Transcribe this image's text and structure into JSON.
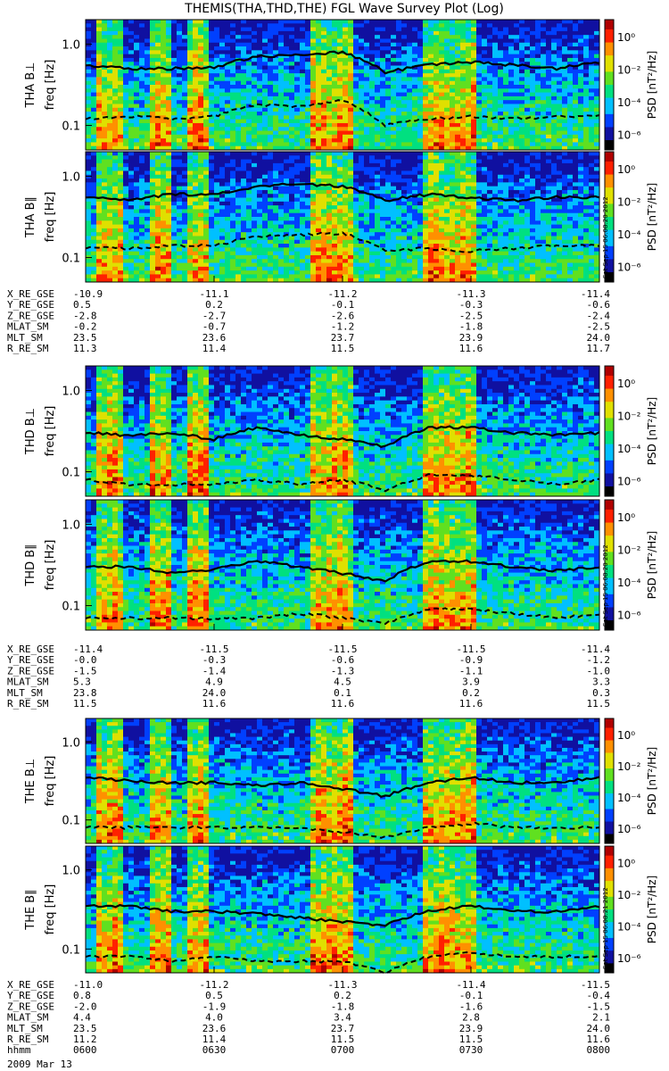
{
  "title": "THEMIS(THA,THD,THE) FGL Wave Survey Plot (Log)",
  "chart_data": {
    "type": "heatmap",
    "ylabel": "freq [Hz]",
    "yscale": "log",
    "ylim": [
      0.05,
      2.0
    ],
    "yticks": [
      "0.1",
      "1.0"
    ],
    "colorbar": {
      "label": "PSD [nT²/Hz]",
      "scale": "log",
      "tick_labels": [
        "10⁰",
        "10⁻²",
        "10⁻⁴",
        "10⁻⁶"
      ],
      "colors": [
        "#000000",
        "#1010a0",
        "#0040ff",
        "#00c0ff",
        "#00e080",
        "#60e020",
        "#e0e000",
        "#ff9000",
        "#ff2000",
        "#b00000"
      ]
    },
    "stamps": [
      "Sat Sep 15 06:08:20 2012",
      "Sat Sep 15 06:08:20 2012",
      "Sat Sep 15 06:08:21 2012"
    ],
    "panels": [
      {
        "label": "THA B⊥",
        "solid_y": [
          0.55,
          0.5,
          0.5,
          0.52,
          0.7,
          0.75,
          0.8,
          0.45,
          0.55,
          0.6,
          0.55,
          0.5,
          0.6
        ],
        "dashed_y": [
          0.12,
          0.13,
          0.12,
          0.13,
          0.18,
          0.17,
          0.2,
          0.1,
          0.12,
          0.13,
          0.12,
          0.13,
          0.13
        ]
      },
      {
        "label": "THA B∥",
        "solid_y": [
          0.55,
          0.5,
          0.6,
          0.6,
          0.75,
          0.8,
          0.75,
          0.5,
          0.6,
          0.55,
          0.5,
          0.55,
          0.55
        ],
        "dashed_y": [
          0.13,
          0.13,
          0.14,
          0.14,
          0.18,
          0.19,
          0.2,
          0.12,
          0.13,
          0.12,
          0.13,
          0.14,
          0.14
        ]
      },
      {
        "label": "THD B⊥",
        "solid_y": [
          0.3,
          0.28,
          0.3,
          0.25,
          0.35,
          0.28,
          0.25,
          0.2,
          0.35,
          0.35,
          0.3,
          0.28,
          0.3
        ],
        "dashed_y": [
          0.08,
          0.07,
          0.07,
          0.07,
          0.08,
          0.07,
          0.08,
          0.06,
          0.09,
          0.09,
          0.08,
          0.07,
          0.08
        ]
      },
      {
        "label": "THD B∥",
        "solid_y": [
          0.3,
          0.3,
          0.25,
          0.28,
          0.35,
          0.3,
          0.25,
          0.2,
          0.35,
          0.35,
          0.3,
          0.27,
          0.3
        ],
        "dashed_y": [
          0.07,
          0.07,
          0.07,
          0.07,
          0.07,
          0.08,
          0.07,
          0.06,
          0.09,
          0.09,
          0.08,
          0.07,
          0.08
        ]
      },
      {
        "label": "THE B⊥",
        "solid_y": [
          0.35,
          0.32,
          0.3,
          0.3,
          0.28,
          0.3,
          0.25,
          0.2,
          0.3,
          0.35,
          0.3,
          0.3,
          0.35
        ],
        "dashed_y": [
          0.08,
          0.08,
          0.08,
          0.08,
          0.08,
          0.08,
          0.07,
          0.06,
          0.08,
          0.09,
          0.08,
          0.08,
          0.08
        ]
      },
      {
        "label": "THE B∥",
        "solid_y": [
          0.35,
          0.35,
          0.3,
          0.3,
          0.28,
          0.25,
          0.22,
          0.2,
          0.3,
          0.35,
          0.3,
          0.3,
          0.35
        ],
        "dashed_y": [
          0.08,
          0.08,
          0.07,
          0.08,
          0.07,
          0.07,
          0.07,
          0.05,
          0.08,
          0.09,
          0.08,
          0.08,
          0.08
        ]
      }
    ]
  },
  "ephemeris": [
    {
      "rows": [
        {
          "name": "X_RE_GSE",
          "values": [
            "-10.9",
            "-11.1",
            "-11.2",
            "-11.3",
            "-11.4"
          ]
        },
        {
          "name": "Y_RE_GSE",
          "values": [
            "0.5",
            "0.2",
            "-0.1",
            "-0.3",
            "-0.6"
          ]
        },
        {
          "name": "Z_RE_GSE",
          "values": [
            "-2.8",
            "-2.7",
            "-2.6",
            "-2.5",
            "-2.4"
          ]
        },
        {
          "name": "MLAT_SM",
          "values": [
            "-0.2",
            "-0.7",
            "-1.2",
            "-1.8",
            "-2.5"
          ]
        },
        {
          "name": "MLT_SM",
          "values": [
            "23.5",
            "23.6",
            "23.7",
            "23.9",
            "24.0"
          ]
        },
        {
          "name": "R_RE_SM",
          "values": [
            "11.3",
            "11.4",
            "11.5",
            "11.6",
            "11.7"
          ]
        }
      ]
    },
    {
      "rows": [
        {
          "name": "X_RE_GSE",
          "values": [
            "-11.4",
            "-11.5",
            "-11.5",
            "-11.5",
            "-11.4"
          ]
        },
        {
          "name": "Y_RE_GSE",
          "values": [
            "-0.0",
            "-0.3",
            "-0.6",
            "-0.9",
            "-1.2"
          ]
        },
        {
          "name": "Z_RE_GSE",
          "values": [
            "-1.5",
            "-1.4",
            "-1.3",
            "-1.1",
            "-1.0"
          ]
        },
        {
          "name": "MLAT_SM",
          "values": [
            "5.3",
            "4.9",
            "4.5",
            "3.9",
            "3.3"
          ]
        },
        {
          "name": "MLT_SM",
          "values": [
            "23.8",
            "24.0",
            "0.1",
            "0.2",
            "0.3"
          ]
        },
        {
          "name": "R_RE_SM",
          "values": [
            "11.5",
            "11.6",
            "11.6",
            "11.6",
            "11.5"
          ]
        }
      ]
    },
    {
      "rows": [
        {
          "name": "X_RE_GSE",
          "values": [
            "-11.0",
            "-11.2",
            "-11.3",
            "-11.4",
            "-11.5"
          ]
        },
        {
          "name": "Y_RE_GSE",
          "values": [
            "0.8",
            "0.5",
            "0.2",
            "-0.1",
            "-0.4"
          ]
        },
        {
          "name": "Z_RE_GSE",
          "values": [
            "-2.0",
            "-1.9",
            "-1.8",
            "-1.6",
            "-1.5"
          ]
        },
        {
          "name": "MLAT_SM",
          "values": [
            "4.4",
            "4.0",
            "3.4",
            "2.8",
            "2.1"
          ]
        },
        {
          "name": "MLT_SM",
          "values": [
            "23.5",
            "23.6",
            "23.7",
            "23.9",
            "24.0"
          ]
        },
        {
          "name": "R_RE_SM",
          "values": [
            "11.2",
            "11.4",
            "11.5",
            "11.5",
            "11.6"
          ]
        },
        {
          "name": "hhmm",
          "values": [
            "0600",
            "0630",
            "0700",
            "0730",
            "0800"
          ]
        }
      ]
    }
  ],
  "date": "2009 Mar 13"
}
